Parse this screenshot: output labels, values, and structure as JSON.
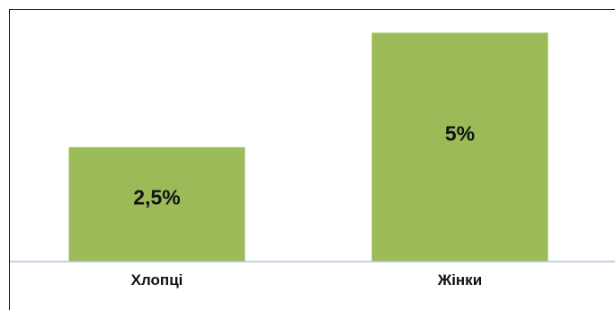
{
  "chart_data": {
    "type": "bar",
    "title": "",
    "xlabel": "",
    "ylabel": "",
    "categories": [
      "Хлопці",
      "Жінки"
    ],
    "values": [
      2.5,
      5
    ],
    "value_labels": [
      "2,5%",
      "5%"
    ],
    "ylim": [
      0,
      5.5
    ],
    "grid": false,
    "legend": "none",
    "colors": {
      "bar": "#9BBB59",
      "axis": "#A9C4E4",
      "text": "#111111"
    }
  }
}
